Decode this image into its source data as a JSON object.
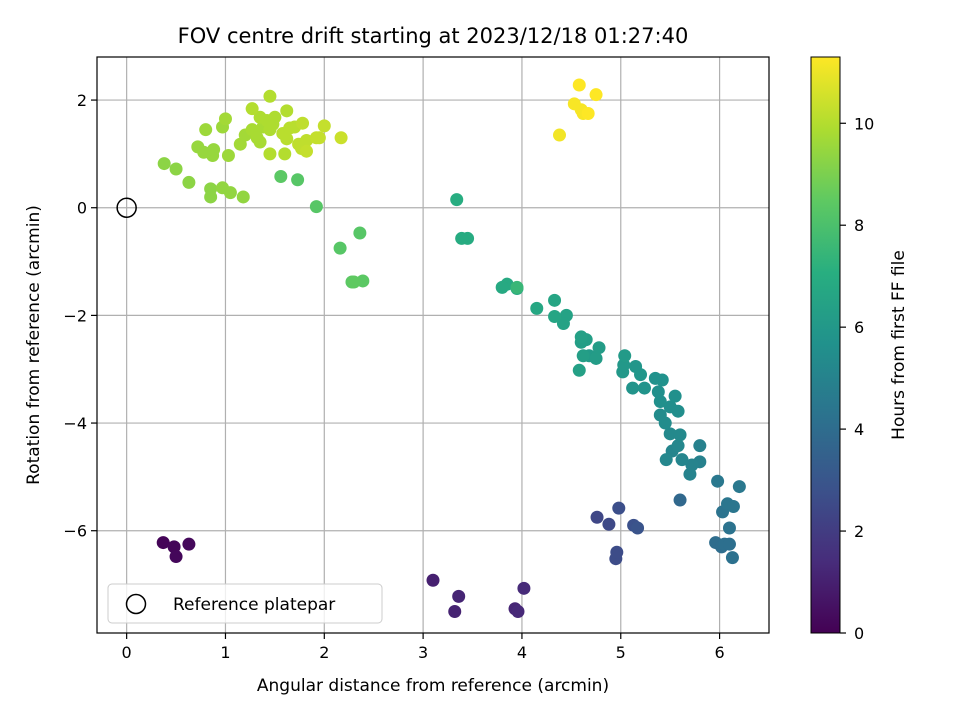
{
  "chart_data": {
    "type": "scatter",
    "title": "FOV centre drift starting at 2023/12/18 01:27:40",
    "xlabel": "Angular distance from reference (arcmin)",
    "ylabel": "Rotation from reference (arcmin)",
    "xlim": [
      -0.3,
      6.5
    ],
    "ylim": [
      -7.9,
      2.8
    ],
    "x_ticks": [
      0,
      1,
      2,
      3,
      4,
      5,
      6
    ],
    "y_ticks": [
      -6,
      -4,
      -2,
      0,
      2
    ],
    "grid": true,
    "colormap": "viridis",
    "colorbar": {
      "label": "Hours from first FF file",
      "range": [
        0,
        11.3
      ],
      "ticks": [
        0,
        2,
        4,
        6,
        8,
        10
      ]
    },
    "reference": {
      "x": 0,
      "y": 0,
      "label": "Reference platepar",
      "marker": "open-circle"
    },
    "legend": {
      "position": "lower-left",
      "entries": [
        "Reference platepar"
      ]
    },
    "points": [
      {
        "x": 0.37,
        "y": -6.22,
        "h": 0.1
      },
      {
        "x": 0.48,
        "y": -6.3,
        "h": 0.15
      },
      {
        "x": 0.5,
        "y": -6.48,
        "h": 0.2
      },
      {
        "x": 0.63,
        "y": -6.25,
        "h": 0.25
      },
      {
        "x": 3.1,
        "y": -6.92,
        "h": 1.0
      },
      {
        "x": 3.32,
        "y": -7.5,
        "h": 1.1
      },
      {
        "x": 3.36,
        "y": -7.22,
        "h": 1.15
      },
      {
        "x": 3.93,
        "y": -7.45,
        "h": 1.2
      },
      {
        "x": 3.96,
        "y": -7.5,
        "h": 1.3
      },
      {
        "x": 4.02,
        "y": -7.07,
        "h": 1.35
      },
      {
        "x": 4.76,
        "y": -5.75,
        "h": 2.4
      },
      {
        "x": 4.88,
        "y": -5.88,
        "h": 2.5
      },
      {
        "x": 4.95,
        "y": -6.52,
        "h": 2.6
      },
      {
        "x": 4.96,
        "y": -6.4,
        "h": 2.6
      },
      {
        "x": 4.98,
        "y": -5.58,
        "h": 2.7
      },
      {
        "x": 5.13,
        "y": -5.9,
        "h": 2.8
      },
      {
        "x": 5.17,
        "y": -5.95,
        "h": 2.9
      },
      {
        "x": 5.6,
        "y": -5.43,
        "h": 3.8
      },
      {
        "x": 5.96,
        "y": -6.22,
        "h": 4.0
      },
      {
        "x": 6.02,
        "y": -6.3,
        "h": 4.0
      },
      {
        "x": 6.05,
        "y": -6.25,
        "h": 4.1
      },
      {
        "x": 6.1,
        "y": -6.25,
        "h": 4.1
      },
      {
        "x": 6.13,
        "y": -6.5,
        "h": 4.2
      },
      {
        "x": 6.1,
        "y": -5.95,
        "h": 4.3
      },
      {
        "x": 6.03,
        "y": -5.65,
        "h": 4.3
      },
      {
        "x": 6.08,
        "y": -5.5,
        "h": 4.4
      },
      {
        "x": 6.14,
        "y": -5.55,
        "h": 4.4
      },
      {
        "x": 6.2,
        "y": -5.18,
        "h": 4.5
      },
      {
        "x": 5.98,
        "y": -5.08,
        "h": 4.5
      },
      {
        "x": 5.8,
        "y": -4.42,
        "h": 4.9
      },
      {
        "x": 5.8,
        "y": -4.72,
        "h": 4.9
      },
      {
        "x": 5.7,
        "y": -4.95,
        "h": 5.0
      },
      {
        "x": 5.72,
        "y": -4.78,
        "h": 5.0
      },
      {
        "x": 5.62,
        "y": -4.68,
        "h": 5.1
      },
      {
        "x": 5.52,
        "y": -4.52,
        "h": 5.1
      },
      {
        "x": 5.46,
        "y": -4.68,
        "h": 5.2
      },
      {
        "x": 5.58,
        "y": -4.42,
        "h": 5.2
      },
      {
        "x": 5.6,
        "y": -4.22,
        "h": 5.3
      },
      {
        "x": 5.5,
        "y": -4.2,
        "h": 5.3
      },
      {
        "x": 5.45,
        "y": -4.0,
        "h": 5.4
      },
      {
        "x": 5.4,
        "y": -3.85,
        "h": 5.4
      },
      {
        "x": 5.5,
        "y": -3.7,
        "h": 5.5
      },
      {
        "x": 5.58,
        "y": -3.78,
        "h": 5.5
      },
      {
        "x": 5.55,
        "y": -3.5,
        "h": 5.6
      },
      {
        "x": 5.4,
        "y": -3.6,
        "h": 5.6
      },
      {
        "x": 5.38,
        "y": -3.42,
        "h": 5.6
      },
      {
        "x": 5.42,
        "y": -3.2,
        "h": 5.7
      },
      {
        "x": 5.35,
        "y": -3.17,
        "h": 5.7
      },
      {
        "x": 5.24,
        "y": -3.35,
        "h": 5.8
      },
      {
        "x": 5.12,
        "y": -3.35,
        "h": 5.8
      },
      {
        "x": 5.2,
        "y": -3.1,
        "h": 5.9
      },
      {
        "x": 5.15,
        "y": -2.95,
        "h": 5.9
      },
      {
        "x": 5.02,
        "y": -3.05,
        "h": 6.0
      },
      {
        "x": 5.03,
        "y": -2.92,
        "h": 6.0
      },
      {
        "x": 5.04,
        "y": -2.75,
        "h": 6.1
      },
      {
        "x": 4.68,
        "y": -2.75,
        "h": 6.1
      },
      {
        "x": 4.75,
        "y": -2.8,
        "h": 6.2
      },
      {
        "x": 4.78,
        "y": -2.6,
        "h": 6.2
      },
      {
        "x": 4.62,
        "y": -2.75,
        "h": 6.3
      },
      {
        "x": 4.6,
        "y": -2.5,
        "h": 6.3
      },
      {
        "x": 4.65,
        "y": -2.45,
        "h": 6.3
      },
      {
        "x": 4.6,
        "y": -2.4,
        "h": 6.4
      },
      {
        "x": 4.58,
        "y": -3.02,
        "h": 6.4
      },
      {
        "x": 4.45,
        "y": -2.0,
        "h": 6.5
      },
      {
        "x": 4.42,
        "y": -2.15,
        "h": 6.5
      },
      {
        "x": 4.33,
        "y": -2.02,
        "h": 6.6
      },
      {
        "x": 4.33,
        "y": -1.72,
        "h": 6.6
      },
      {
        "x": 4.15,
        "y": -1.87,
        "h": 6.7
      },
      {
        "x": 3.95,
        "y": -1.5,
        "h": 6.8
      },
      {
        "x": 3.85,
        "y": -1.42,
        "h": 6.8
      },
      {
        "x": 3.8,
        "y": -1.48,
        "h": 6.8
      },
      {
        "x": 3.95,
        "y": -1.48,
        "h": 7.5
      },
      {
        "x": 3.45,
        "y": -0.57,
        "h": 6.9
      },
      {
        "x": 3.39,
        "y": -0.57,
        "h": 6.9
      },
      {
        "x": 3.34,
        "y": 0.15,
        "h": 7.0
      },
      {
        "x": 2.36,
        "y": -0.47,
        "h": 8.3
      },
      {
        "x": 2.16,
        "y": -0.75,
        "h": 8.3
      },
      {
        "x": 2.39,
        "y": -1.36,
        "h": 8.4
      },
      {
        "x": 2.28,
        "y": -1.38,
        "h": 8.4
      },
      {
        "x": 2.3,
        "y": -1.38,
        "h": 8.5
      },
      {
        "x": 1.92,
        "y": 0.02,
        "h": 8.3
      },
      {
        "x": 1.73,
        "y": 0.52,
        "h": 8.3
      },
      {
        "x": 1.56,
        "y": 0.58,
        "h": 8.4
      },
      {
        "x": 0.85,
        "y": 0.2,
        "h": 9.3
      },
      {
        "x": 0.85,
        "y": 0.35,
        "h": 9.3
      },
      {
        "x": 0.97,
        "y": 0.37,
        "h": 9.4
      },
      {
        "x": 1.05,
        "y": 0.28,
        "h": 9.4
      },
      {
        "x": 1.18,
        "y": 0.2,
        "h": 9.4
      },
      {
        "x": 0.63,
        "y": 0.47,
        "h": 9.3
      },
      {
        "x": 0.5,
        "y": 0.72,
        "h": 9.3
      },
      {
        "x": 0.38,
        "y": 0.82,
        "h": 9.3
      },
      {
        "x": 0.72,
        "y": 1.13,
        "h": 9.5
      },
      {
        "x": 0.78,
        "y": 1.03,
        "h": 9.5
      },
      {
        "x": 0.87,
        "y": 0.97,
        "h": 9.5
      },
      {
        "x": 0.88,
        "y": 1.08,
        "h": 9.5
      },
      {
        "x": 1.03,
        "y": 0.97,
        "h": 9.6
      },
      {
        "x": 0.8,
        "y": 1.45,
        "h": 9.6
      },
      {
        "x": 0.97,
        "y": 1.5,
        "h": 9.6
      },
      {
        "x": 1.0,
        "y": 1.65,
        "h": 9.7
      },
      {
        "x": 1.15,
        "y": 1.18,
        "h": 9.7
      },
      {
        "x": 1.2,
        "y": 1.35,
        "h": 9.7
      },
      {
        "x": 1.27,
        "y": 1.45,
        "h": 9.8
      },
      {
        "x": 1.32,
        "y": 1.3,
        "h": 9.8
      },
      {
        "x": 1.35,
        "y": 1.22,
        "h": 9.8
      },
      {
        "x": 1.38,
        "y": 1.5,
        "h": 9.8
      },
      {
        "x": 1.35,
        "y": 1.68,
        "h": 9.9
      },
      {
        "x": 1.42,
        "y": 1.62,
        "h": 9.9
      },
      {
        "x": 1.45,
        "y": 1.45,
        "h": 9.9
      },
      {
        "x": 1.48,
        "y": 1.55,
        "h": 9.9
      },
      {
        "x": 1.45,
        "y": 1.0,
        "h": 10.0
      },
      {
        "x": 1.6,
        "y": 1.0,
        "h": 10.0
      },
      {
        "x": 1.5,
        "y": 1.68,
        "h": 9.9
      },
      {
        "x": 1.27,
        "y": 1.84,
        "h": 10.0
      },
      {
        "x": 1.45,
        "y": 2.07,
        "h": 10.0
      },
      {
        "x": 1.62,
        "y": 1.8,
        "h": 10.0
      },
      {
        "x": 1.58,
        "y": 1.38,
        "h": 10.1
      },
      {
        "x": 1.62,
        "y": 1.28,
        "h": 10.1
      },
      {
        "x": 1.65,
        "y": 1.48,
        "h": 10.1
      },
      {
        "x": 1.7,
        "y": 1.5,
        "h": 10.1
      },
      {
        "x": 1.74,
        "y": 1.18,
        "h": 10.2
      },
      {
        "x": 1.77,
        "y": 1.1,
        "h": 10.2
      },
      {
        "x": 1.78,
        "y": 1.57,
        "h": 10.2
      },
      {
        "x": 1.82,
        "y": 1.25,
        "h": 10.2
      },
      {
        "x": 1.82,
        "y": 1.05,
        "h": 10.3
      },
      {
        "x": 1.92,
        "y": 1.3,
        "h": 10.3
      },
      {
        "x": 1.95,
        "y": 1.3,
        "h": 10.3
      },
      {
        "x": 2.0,
        "y": 1.52,
        "h": 10.3
      },
      {
        "x": 2.17,
        "y": 1.3,
        "h": 10.4
      },
      {
        "x": 4.38,
        "y": 1.35,
        "h": 11.1
      },
      {
        "x": 4.53,
        "y": 1.93,
        "h": 11.2
      },
      {
        "x": 4.6,
        "y": 1.82,
        "h": 11.2
      },
      {
        "x": 4.62,
        "y": 1.75,
        "h": 11.2
      },
      {
        "x": 4.67,
        "y": 1.75,
        "h": 11.3
      },
      {
        "x": 4.58,
        "y": 2.28,
        "h": 11.3
      },
      {
        "x": 4.75,
        "y": 2.1,
        "h": 11.3
      }
    ]
  }
}
